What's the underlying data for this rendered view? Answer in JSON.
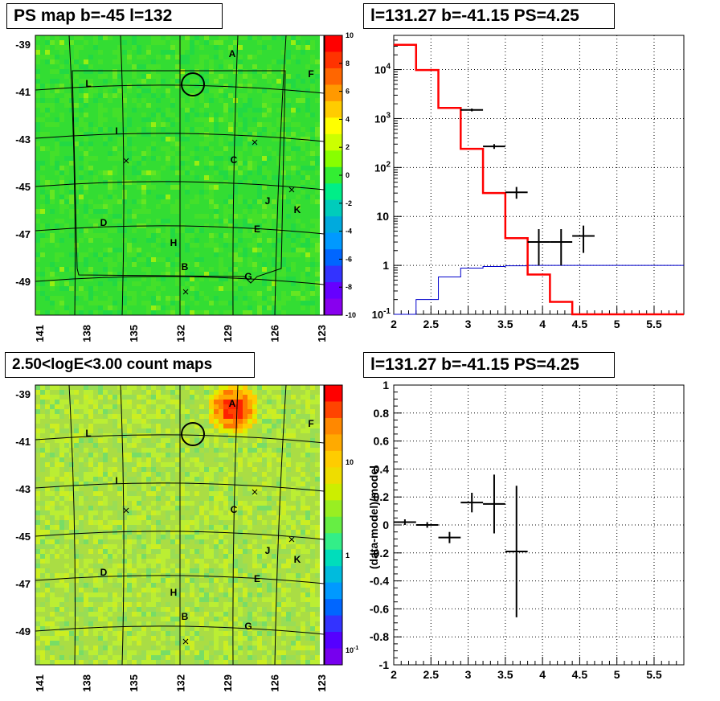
{
  "panels": {
    "ps_map_title": "PS map b=-45 l=132",
    "spectrum_title": "l=131.27 b=-41.15 PS=4.25",
    "count_map_title": "2.50<logE<3.00 count maps",
    "residual_title": "l=131.27 b=-41.15 PS=4.25"
  },
  "colors": {
    "map_green": "#33dd33",
    "count_bg": "#aadd44",
    "model_line": "#ff0000",
    "background_line": "#0000cc",
    "data_points": "#000000"
  },
  "chart_data": [
    {
      "id": "ps_map",
      "type": "heatmap",
      "title": "PS map b=-45 l=132",
      "x_ticks": [
        "141",
        "138",
        "135",
        "132",
        "129",
        "126",
        "123"
      ],
      "y_ticks": [
        "-39",
        "-41",
        "-43",
        "-45",
        "-47",
        "-49"
      ],
      "colorbar_ticks": [
        "10",
        "8",
        "6",
        "4",
        "2",
        "0",
        "-2",
        "-4",
        "-6",
        "-8",
        "-10"
      ],
      "zlim": [
        -10,
        10
      ],
      "source_labels": [
        "A",
        "F",
        "L",
        "I",
        "C",
        "J",
        "K",
        "D",
        "E",
        "H",
        "B",
        "G"
      ]
    },
    {
      "id": "spectrum",
      "type": "line",
      "title": "l=131.27 b=-41.15 PS=4.25",
      "x_ticks": [
        "2",
        "2.5",
        "3",
        "3.5",
        "4",
        "4.5",
        "5",
        "5.5"
      ],
      "xlim": [
        2,
        5.9
      ],
      "yscale": "log",
      "ylim": [
        0.1,
        50000
      ],
      "y_ticks": [
        "10^-1",
        "1",
        "10",
        "10^2",
        "10^3",
        "10^4"
      ],
      "grid": true,
      "series": [
        {
          "role": "model",
          "color": "#ff0000",
          "bin_edges": [
            2.0,
            2.3,
            2.6,
            2.9,
            3.2,
            3.5,
            3.8,
            4.1,
            4.4,
            4.7,
            5.0,
            5.3,
            5.6,
            5.9
          ],
          "values": [
            32000,
            9800,
            1650,
            240,
            30,
            3.6,
            0.65,
            0.18,
            0.1,
            0.1,
            0.1,
            0.1,
            0.1
          ]
        },
        {
          "role": "background",
          "color": "#0000cc",
          "bin_edges": [
            2.0,
            2.3,
            2.6,
            2.9,
            3.2,
            3.5,
            3.8,
            4.1,
            4.4,
            4.7,
            5.0,
            5.3,
            5.6,
            5.9
          ],
          "values": [
            0.04,
            0.2,
            0.58,
            0.88,
            0.95,
            0.98,
            1.0,
            1.0,
            1.0,
            1.0,
            1.0,
            1.0,
            1.0
          ]
        },
        {
          "role": "data",
          "color": "#000000",
          "points": [
            {
              "x": 3.05,
              "y": 1500,
              "xerr": 0.15,
              "ylo": 1400,
              "yhi": 1600
            },
            {
              "x": 3.35,
              "y": 270,
              "xerr": 0.15,
              "ylo": 240,
              "yhi": 300
            },
            {
              "x": 3.65,
              "y": 31,
              "xerr": 0.15,
              "ylo": 23,
              "yhi": 40
            },
            {
              "x": 3.95,
              "y": 3,
              "xerr": 0.15,
              "ylo": 1.0,
              "yhi": 5.5
            },
            {
              "x": 4.25,
              "y": 3,
              "xerr": 0.15,
              "ylo": 1.0,
              "yhi": 5.5
            },
            {
              "x": 4.55,
              "y": 4,
              "xerr": 0.15,
              "ylo": 1.8,
              "yhi": 6.5
            }
          ]
        }
      ]
    },
    {
      "id": "count_map",
      "type": "heatmap",
      "title": "2.50<logE<3.00 count maps",
      "x_ticks": [
        "141",
        "138",
        "135",
        "132",
        "129",
        "126",
        "123"
      ],
      "y_ticks": [
        "-39",
        "-41",
        "-43",
        "-45",
        "-47",
        "-49"
      ],
      "colorbar_ticks": [
        "10",
        "1",
        "10^-1"
      ],
      "zscale": "log",
      "source_labels": [
        "A",
        "F",
        "L",
        "I",
        "C",
        "J",
        "K",
        "D",
        "E",
        "H",
        "B",
        "G"
      ]
    },
    {
      "id": "residual",
      "type": "scatter",
      "title": "l=131.27 b=-41.15 PS=4.25",
      "ylabel": "(data-model)/model",
      "x_ticks": [
        "2",
        "2.5",
        "3",
        "3.5",
        "4",
        "4.5",
        "5",
        "5.5"
      ],
      "xlim": [
        2,
        5.9
      ],
      "ylim": [
        -1,
        1
      ],
      "y_ticks": [
        "1",
        "0.8",
        "0.6",
        "0.4",
        "0.2",
        "0",
        "-0.2",
        "-0.4",
        "-0.6",
        "-0.8",
        "-1"
      ],
      "grid": true,
      "points": [
        {
          "x": 2.15,
          "y": 0.02,
          "xerr": 0.15,
          "ylo": 0.0,
          "yhi": 0.04
        },
        {
          "x": 2.45,
          "y": 0.0,
          "xerr": 0.15,
          "ylo": -0.02,
          "yhi": 0.02
        },
        {
          "x": 2.75,
          "y": -0.09,
          "xerr": 0.15,
          "ylo": -0.13,
          "yhi": -0.05
        },
        {
          "x": 3.05,
          "y": 0.16,
          "xerr": 0.15,
          "ylo": 0.09,
          "yhi": 0.23
        },
        {
          "x": 3.35,
          "y": 0.15,
          "xerr": 0.15,
          "ylo": -0.06,
          "yhi": 0.36
        },
        {
          "x": 3.65,
          "y": -0.19,
          "xerr": 0.15,
          "ylo": -0.66,
          "yhi": 0.28
        }
      ]
    }
  ]
}
